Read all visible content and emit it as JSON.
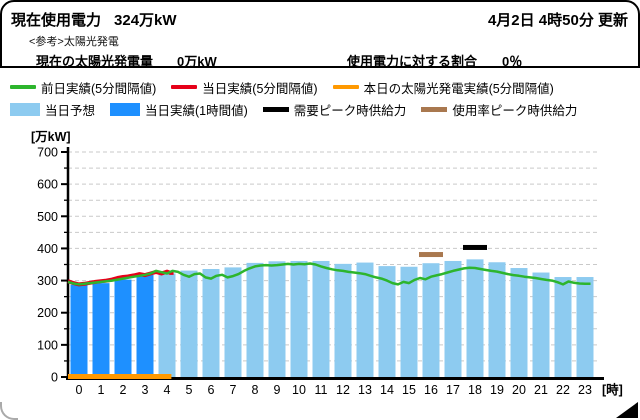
{
  "header": {
    "usage_label": "現在使用電力",
    "usage_value": "324万kW",
    "updated": "4月2日  4時50分  更新",
    "reference_note": "<参考>太陽光発電",
    "solar_label": "現在の太陽光発電量",
    "solar_value": "0万kW",
    "ratio_label": "使用電力に対する割合",
    "ratio_value": "0％"
  },
  "colors": {
    "green": "#2DB52D",
    "red": "#E60019",
    "orange": "#FF9900",
    "light_blue": "#8DCBF0",
    "dark_blue": "#1E90FF",
    "black": "#000000",
    "brown": "#A9784F",
    "grid": "#C9C9C9",
    "axis": "#000000"
  },
  "legend": {
    "rows": [
      [
        {
          "swatch": "line",
          "color_key": "green",
          "label": "前日実績(5分間隔値)"
        },
        {
          "swatch": "line",
          "color_key": "red",
          "label": "当日実績(5分間隔値)"
        },
        {
          "swatch": "line",
          "color_key": "orange",
          "label": "本日の太陽光発電実績(5分間隔値)"
        }
      ],
      [
        {
          "swatch": "bar",
          "color_key": "light_blue",
          "label": "当日予想"
        },
        {
          "swatch": "bar",
          "color_key": "dark_blue",
          "label": "当日実績(1時間値)"
        },
        {
          "swatch": "thick-line",
          "color_key": "black",
          "label": "需要ピーク時供給力"
        },
        {
          "swatch": "thick-line",
          "color_key": "brown",
          "label": "使用率ピーク時供給力"
        }
      ]
    ]
  },
  "chart_data": {
    "type": "bar",
    "unit_label": "[万kW]",
    "x_unit_label": "[時]",
    "ylim": [
      0,
      700
    ],
    "y_ticks": [
      0,
      100,
      200,
      300,
      400,
      500,
      600,
      700
    ],
    "grid_step": 50,
    "grid_on": true,
    "hours": [
      0,
      1,
      2,
      3,
      4,
      5,
      6,
      7,
      8,
      9,
      10,
      11,
      12,
      13,
      14,
      15,
      16,
      17,
      18,
      19,
      20,
      21,
      22,
      23
    ],
    "bars": {
      "actual": {
        "label": "当日実績(1時間値)",
        "color_key": "dark_blue",
        "hours": [
          0,
          1,
          2,
          3
        ],
        "values": [
          287,
          292,
          303,
          318
        ]
      },
      "forecast": {
        "label": "当日予想",
        "color_key": "light_blue",
        "hours": [
          4,
          5,
          6,
          7,
          8,
          9,
          10,
          11,
          12,
          13,
          14,
          15,
          16,
          17,
          18,
          19,
          20,
          21,
          22,
          23
        ],
        "values": [
          322,
          331,
          336,
          341,
          355,
          360,
          361,
          361,
          352,
          356,
          345,
          343,
          354,
          361,
          366,
          357,
          339,
          325,
          311,
          311
        ]
      }
    },
    "series": [
      {
        "name": "前日実績(5分間隔値)",
        "color_key": "green",
        "width": 2.5,
        "points": [
          [
            0,
            296
          ],
          [
            0.25,
            291
          ],
          [
            0.5,
            288
          ],
          [
            0.75,
            290
          ],
          [
            1,
            292
          ],
          [
            1.25,
            294
          ],
          [
            1.5,
            296
          ],
          [
            1.75,
            298
          ],
          [
            2,
            300
          ],
          [
            2.25,
            303
          ],
          [
            2.5,
            306
          ],
          [
            2.75,
            309
          ],
          [
            3,
            312
          ],
          [
            3.25,
            315
          ],
          [
            3.5,
            318
          ],
          [
            3.75,
            322
          ],
          [
            4,
            330
          ],
          [
            4.25,
            326
          ],
          [
            4.5,
            322
          ],
          [
            4.75,
            330
          ],
          [
            5,
            327
          ],
          [
            5.25,
            318
          ],
          [
            5.5,
            312
          ],
          [
            5.75,
            320
          ],
          [
            6,
            322
          ],
          [
            6.25,
            310
          ],
          [
            6.5,
            306
          ],
          [
            6.75,
            315
          ],
          [
            7,
            318
          ],
          [
            7.25,
            310
          ],
          [
            7.5,
            314
          ],
          [
            7.75,
            320
          ],
          [
            8,
            330
          ],
          [
            8.25,
            338
          ],
          [
            8.5,
            344
          ],
          [
            8.75,
            347
          ],
          [
            9,
            348
          ],
          [
            9.25,
            347
          ],
          [
            9.5,
            348
          ],
          [
            9.75,
            350
          ],
          [
            10,
            352
          ],
          [
            10.25,
            350
          ],
          [
            10.5,
            352
          ],
          [
            10.75,
            351
          ],
          [
            11,
            353
          ],
          [
            11.25,
            350
          ],
          [
            11.5,
            344
          ],
          [
            11.75,
            339
          ],
          [
            12,
            335
          ],
          [
            12.25,
            332
          ],
          [
            12.5,
            330
          ],
          [
            12.75,
            327
          ],
          [
            13,
            325
          ],
          [
            13.25,
            323
          ],
          [
            13.5,
            320
          ],
          [
            13.75,
            315
          ],
          [
            14,
            310
          ],
          [
            14.25,
            306
          ],
          [
            14.5,
            300
          ],
          [
            14.75,
            292
          ],
          [
            15,
            288
          ],
          [
            15.25,
            296
          ],
          [
            15.5,
            292
          ],
          [
            15.75,
            302
          ],
          [
            16,
            308
          ],
          [
            16.25,
            304
          ],
          [
            16.5,
            312
          ],
          [
            16.75,
            316
          ],
          [
            17,
            320
          ],
          [
            17.25,
            325
          ],
          [
            17.5,
            330
          ],
          [
            17.75,
            334
          ],
          [
            18,
            338
          ],
          [
            18.25,
            340
          ],
          [
            18.5,
            339
          ],
          [
            18.75,
            336
          ],
          [
            19,
            333
          ],
          [
            19.25,
            330
          ],
          [
            19.5,
            328
          ],
          [
            19.75,
            324
          ],
          [
            20,
            320
          ],
          [
            20.25,
            317
          ],
          [
            20.5,
            315
          ],
          [
            20.75,
            312
          ],
          [
            21,
            310
          ],
          [
            21.25,
            308
          ],
          [
            21.5,
            305
          ],
          [
            21.75,
            302
          ],
          [
            22,
            300
          ],
          [
            22.25,
            295
          ],
          [
            22.5,
            288
          ],
          [
            22.75,
            297
          ],
          [
            23,
            293
          ],
          [
            23.25,
            291
          ],
          [
            23.5,
            290
          ],
          [
            23.75,
            290
          ]
        ]
      },
      {
        "name": "当日実績(5分間隔値)",
        "color_key": "red",
        "width": 4,
        "points": [
          [
            0,
            298
          ],
          [
            0.25,
            292
          ],
          [
            0.5,
            288
          ],
          [
            0.75,
            290
          ],
          [
            1,
            293
          ],
          [
            1.25,
            296
          ],
          [
            1.5,
            298
          ],
          [
            1.75,
            300
          ],
          [
            2,
            303
          ],
          [
            2.25,
            308
          ],
          [
            2.5,
            311
          ],
          [
            2.75,
            313
          ],
          [
            3,
            316
          ],
          [
            3.25,
            320
          ],
          [
            3.5,
            317
          ],
          [
            3.75,
            322
          ],
          [
            4,
            327
          ],
          [
            4.25,
            322
          ],
          [
            4.5,
            328
          ],
          [
            4.65,
            324
          ],
          [
            4.8,
            324
          ]
        ]
      },
      {
        "name": "本日の太陽光発電実績(5分間隔値)",
        "color_key": "orange",
        "width": 5,
        "points": [
          [
            0,
            0
          ],
          [
            4.7,
            0
          ]
        ]
      }
    ],
    "markers": [
      {
        "label": "需要ピーク時供給力",
        "color_key": "black",
        "hour": 18,
        "value": 403
      },
      {
        "label": "使用率ピーク時供給力",
        "color_key": "brown",
        "hour": 16,
        "value": 381
      }
    ]
  }
}
